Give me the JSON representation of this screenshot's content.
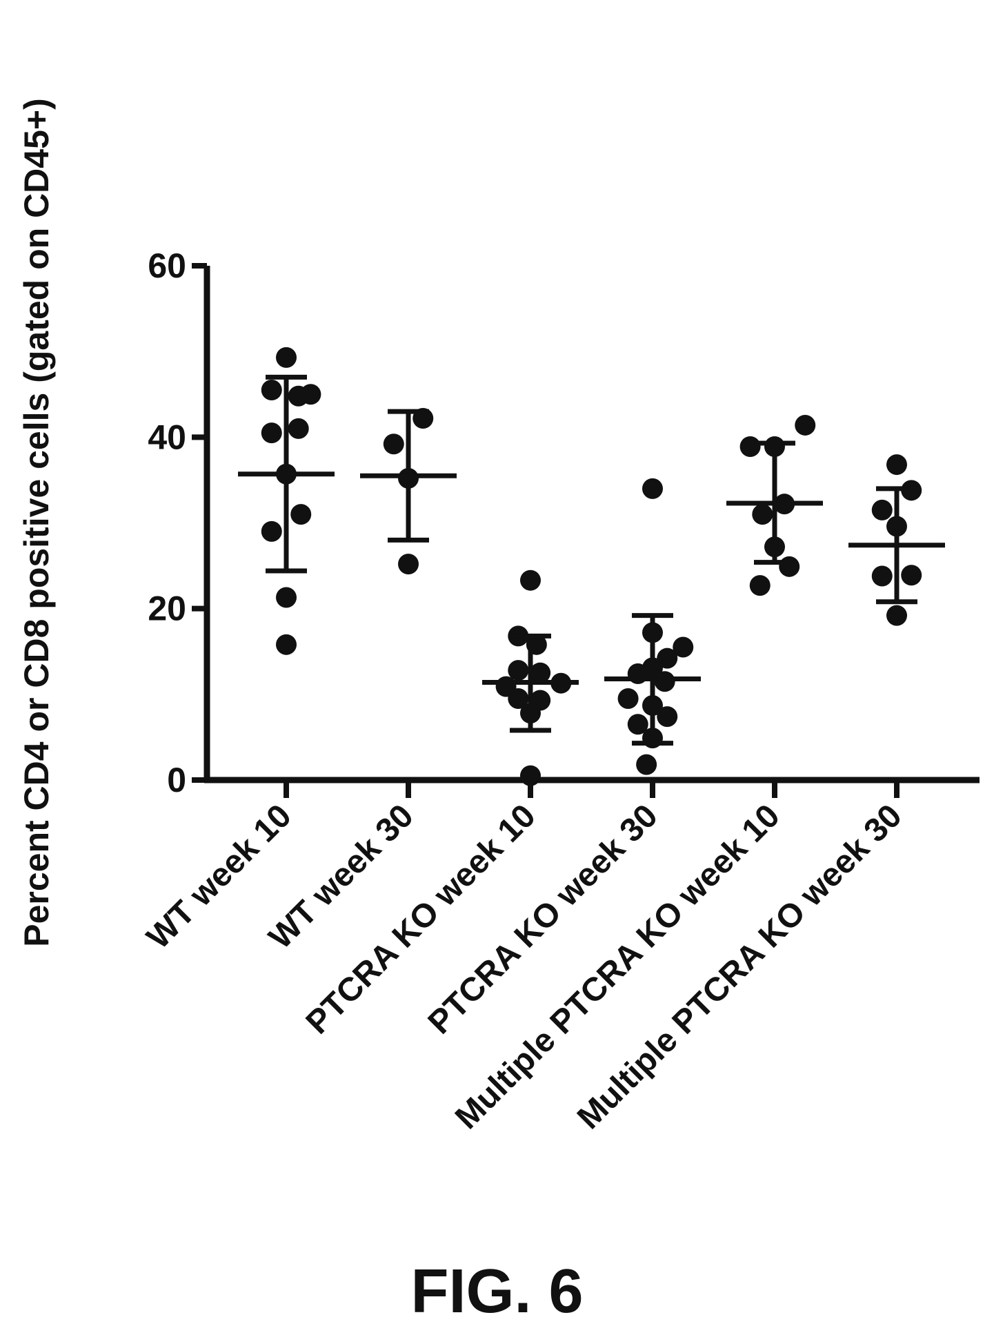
{
  "figure_label": "FIG. 6",
  "chart_data": {
    "type": "scatter",
    "ylabel": "Percent CD4 or CD8 positive cells (gated on CD45+)",
    "xlabel": "",
    "ylim": [
      0,
      60
    ],
    "yticks": [
      0,
      20,
      40,
      60
    ],
    "grid": false,
    "categories": [
      "WT week 10",
      "WT week 30",
      "PTCRA KO week 10",
      "PTCRA KO week 30",
      "Multiple PTCRA KO week 10",
      "Multiple PTCRA KO week 30"
    ],
    "groups": [
      {
        "points": [
          {
            "dx": 0.0,
            "y": 49.3
          },
          {
            "dx": -0.12,
            "y": 45.5
          },
          {
            "dx": 0.1,
            "y": 44.8
          },
          {
            "dx": 0.2,
            "y": 45.0
          },
          {
            "dx": -0.12,
            "y": 40.5
          },
          {
            "dx": 0.1,
            "y": 41.0
          },
          {
            "dx": 0.0,
            "y": 35.7
          },
          {
            "dx": 0.12,
            "y": 31.0
          },
          {
            "dx": -0.12,
            "y": 29.0
          },
          {
            "dx": 0.0,
            "y": 21.3
          },
          {
            "dx": 0.0,
            "y": 15.8
          }
        ],
        "mean": 35.7,
        "sd_low": 24.4,
        "sd_high": 47.0
      },
      {
        "points": [
          {
            "dx": 0.12,
            "y": 42.2
          },
          {
            "dx": -0.12,
            "y": 39.2
          },
          {
            "dx": 0.0,
            "y": 35.2
          },
          {
            "dx": 0.0,
            "y": 25.2
          }
        ],
        "mean": 35.5,
        "sd_low": 28.0,
        "sd_high": 43.0
      },
      {
        "points": [
          {
            "dx": 0.0,
            "y": 23.3
          },
          {
            "dx": -0.1,
            "y": 16.8
          },
          {
            "dx": 0.05,
            "y": 15.8
          },
          {
            "dx": -0.1,
            "y": 12.8
          },
          {
            "dx": 0.08,
            "y": 12.5
          },
          {
            "dx": 0.25,
            "y": 11.3
          },
          {
            "dx": -0.2,
            "y": 10.9
          },
          {
            "dx": -0.1,
            "y": 9.5
          },
          {
            "dx": 0.08,
            "y": 9.3
          },
          {
            "dx": 0.0,
            "y": 7.8
          },
          {
            "dx": 0.0,
            "y": 0.5
          }
        ],
        "mean": 11.4,
        "sd_low": 5.8,
        "sd_high": 16.8
      },
      {
        "points": [
          {
            "dx": 0.0,
            "y": 34.0
          },
          {
            "dx": 0.0,
            "y": 17.2
          },
          {
            "dx": 0.25,
            "y": 15.5
          },
          {
            "dx": 0.12,
            "y": 14.2
          },
          {
            "dx": 0.0,
            "y": 13.1
          },
          {
            "dx": -0.12,
            "y": 12.4
          },
          {
            "dx": 0.1,
            "y": 11.5
          },
          {
            "dx": -0.2,
            "y": 9.5
          },
          {
            "dx": 0.0,
            "y": 8.7
          },
          {
            "dx": 0.12,
            "y": 7.4
          },
          {
            "dx": -0.12,
            "y": 6.5
          },
          {
            "dx": 0.0,
            "y": 4.9
          },
          {
            "dx": -0.05,
            "y": 1.8
          }
        ],
        "mean": 11.8,
        "sd_low": 4.3,
        "sd_high": 19.2
      },
      {
        "points": [
          {
            "dx": 0.25,
            "y": 41.4
          },
          {
            "dx": -0.2,
            "y": 38.9
          },
          {
            "dx": 0.0,
            "y": 38.9
          },
          {
            "dx": 0.08,
            "y": 32.2
          },
          {
            "dx": -0.1,
            "y": 31.0
          },
          {
            "dx": 0.0,
            "y": 27.2
          },
          {
            "dx": 0.12,
            "y": 24.9
          },
          {
            "dx": -0.12,
            "y": 22.7
          }
        ],
        "mean": 32.3,
        "sd_low": 25.4,
        "sd_high": 39.3
      },
      {
        "points": [
          {
            "dx": 0.0,
            "y": 36.8
          },
          {
            "dx": 0.12,
            "y": 33.8
          },
          {
            "dx": -0.12,
            "y": 31.5
          },
          {
            "dx": 0.0,
            "y": 29.6
          },
          {
            "dx": -0.12,
            "y": 23.8
          },
          {
            "dx": 0.12,
            "y": 23.9
          },
          {
            "dx": 0.0,
            "y": 19.2
          }
        ],
        "mean": 27.4,
        "sd_low": 20.8,
        "sd_high": 34.0
      }
    ]
  }
}
